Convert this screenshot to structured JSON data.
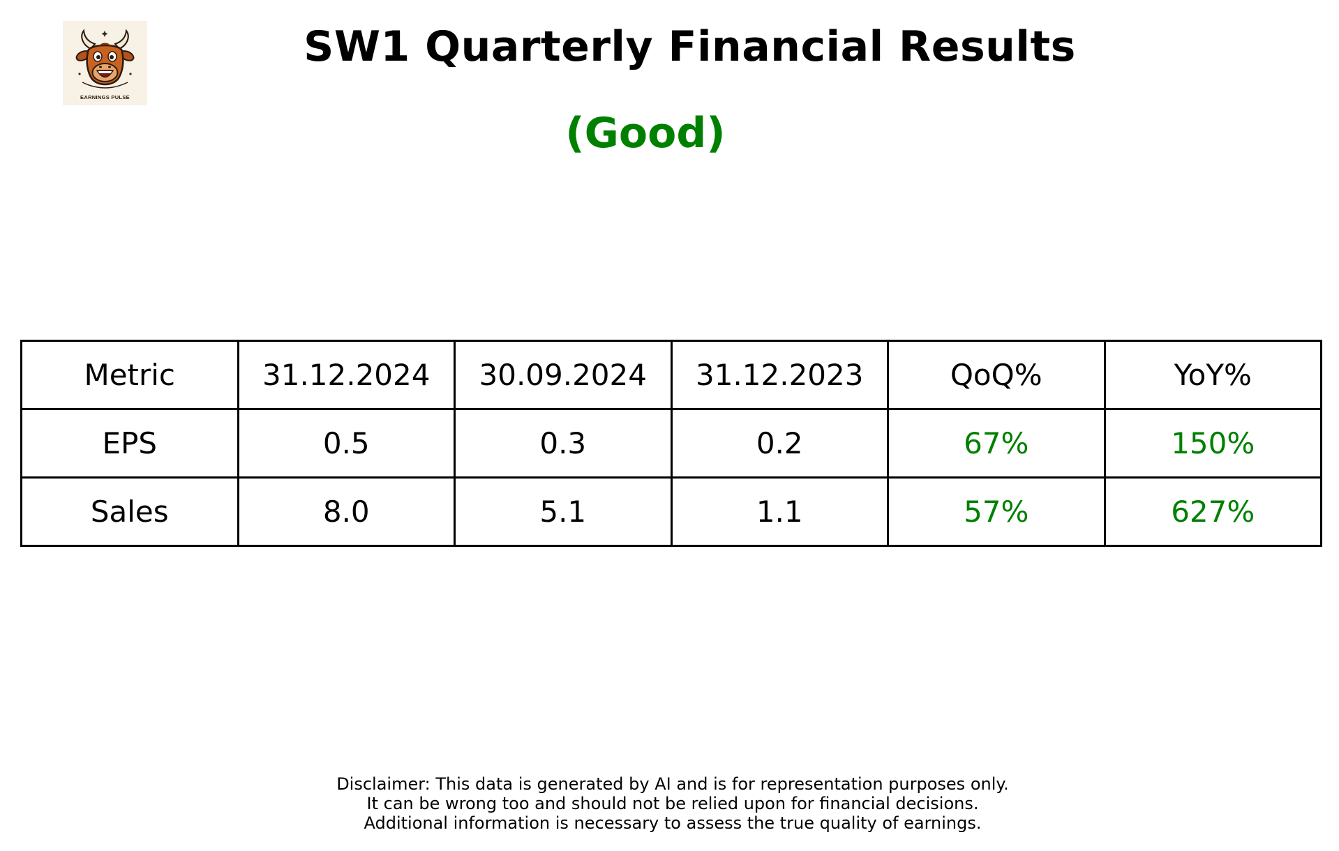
{
  "logo": {
    "icon": "bull-mascot-icon",
    "text": "EARNINGS PULSE"
  },
  "header": {
    "title": "SW1 Quarterly Financial Results",
    "rating": "(Good)"
  },
  "colors": {
    "positive": "#008000",
    "text": "#000000",
    "logo_background": "#f7f1e6"
  },
  "table": {
    "columns": [
      "Metric",
      "31.12.2024",
      "30.09.2024",
      "31.12.2023",
      "QoQ%",
      "YoY%"
    ],
    "rows": [
      {
        "metric": "EPS",
        "q_2024_12": "0.5",
        "q_2024_09": "0.3",
        "q_2023_12": "0.2",
        "qoq": "67%",
        "yoy": "150%"
      },
      {
        "metric": "Sales",
        "q_2024_12": "8.0",
        "q_2024_09": "5.1",
        "q_2023_12": "1.1",
        "qoq": "57%",
        "yoy": "627%"
      }
    ]
  },
  "disclaimer": {
    "line1": "Disclaimer: This data is generated by AI and is for representation purposes only.",
    "line2": "It can be wrong too and should not be relied upon for financial decisions.",
    "line3": "Additional information is necessary to assess the true quality of earnings."
  }
}
